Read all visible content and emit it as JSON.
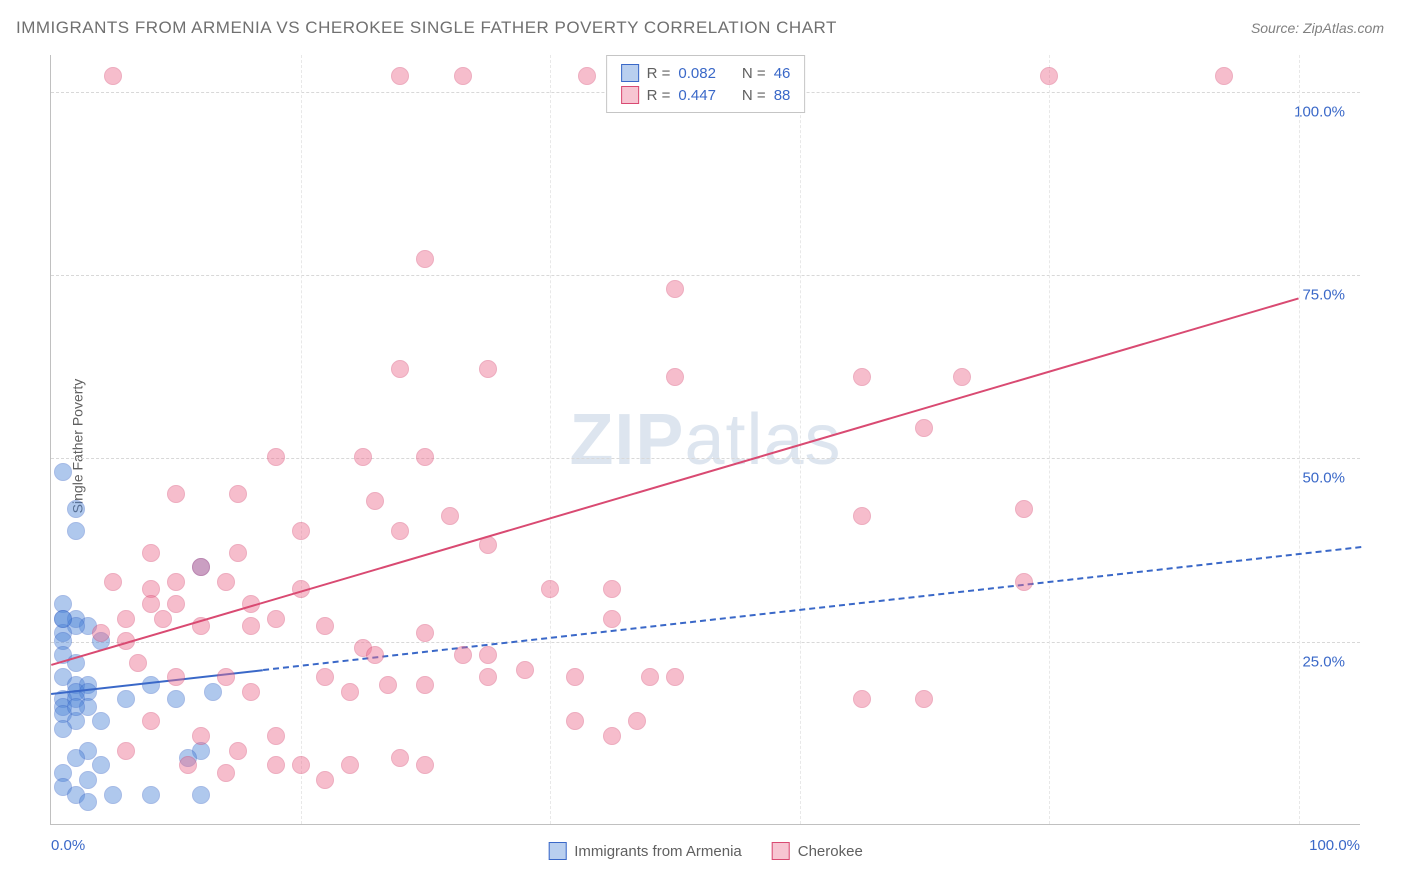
{
  "title": "IMMIGRANTS FROM ARMENIA VS CHEROKEE SINGLE FATHER POVERTY CORRELATION CHART",
  "source": "Source: ZipAtlas.com",
  "ylabel": "Single Father Poverty",
  "watermark": "ZIPatlas",
  "chart": {
    "type": "scatter",
    "xlim": [
      0,
      105
    ],
    "ylim": [
      0,
      105
    ],
    "xticks": [
      {
        "v": 0,
        "l": "0.0%"
      },
      {
        "v": 100,
        "l": "100.0%"
      }
    ],
    "yticks": [
      {
        "v": 25,
        "l": "25.0%"
      },
      {
        "v": 50,
        "l": "50.0%"
      },
      {
        "v": 75,
        "l": "75.0%"
      },
      {
        "v": 100,
        "l": "100.0%"
      }
    ],
    "xgrid_step": 20,
    "grid_color": "#d8d8d8",
    "background_color": "#ffffff",
    "tick_color": "#3a68c8",
    "marker_radius": 9,
    "marker_border": 1.5,
    "marker_fill_opacity": 0.35,
    "series": [
      {
        "name": "Immigrants from Armenia",
        "color": "#4f86d8",
        "border_color": "#3a68c8",
        "R": "0.082",
        "N": "46",
        "trend": {
          "x1": 0,
          "y1": 18,
          "x2": 105,
          "y2": 38,
          "solid_until_x": 17,
          "width": 2
        },
        "points": [
          [
            1,
            48
          ],
          [
            2,
            43
          ],
          [
            2,
            40
          ],
          [
            1,
            30
          ],
          [
            1,
            28
          ],
          [
            2,
            28
          ],
          [
            3,
            27
          ],
          [
            2,
            27
          ],
          [
            1,
            26
          ],
          [
            1,
            25
          ],
          [
            4,
            25
          ],
          [
            1,
            23
          ],
          [
            2,
            22
          ],
          [
            1,
            20
          ],
          [
            2,
            19
          ],
          [
            3,
            19
          ],
          [
            2,
            18
          ],
          [
            3,
            18
          ],
          [
            1,
            17
          ],
          [
            2,
            17
          ],
          [
            1,
            16
          ],
          [
            3,
            16
          ],
          [
            1,
            15
          ],
          [
            2,
            14
          ],
          [
            4,
            14
          ],
          [
            1,
            13
          ],
          [
            6,
            17
          ],
          [
            8,
            19
          ],
          [
            10,
            17
          ],
          [
            12,
            35
          ],
          [
            12,
            10
          ],
          [
            13,
            18
          ],
          [
            11,
            9
          ],
          [
            3,
            10
          ],
          [
            2,
            9
          ],
          [
            4,
            8
          ],
          [
            1,
            7
          ],
          [
            3,
            6
          ],
          [
            5,
            4
          ],
          [
            8,
            4
          ],
          [
            12,
            4
          ],
          [
            1,
            5
          ],
          [
            2,
            4
          ],
          [
            3,
            3
          ],
          [
            1,
            28
          ],
          [
            2,
            16
          ]
        ]
      },
      {
        "name": "Cherokee",
        "color": "#ec6e8f",
        "border_color": "#d94a72",
        "R": "0.447",
        "N": "88",
        "trend": {
          "x1": 0,
          "y1": 22,
          "x2": 100,
          "y2": 72,
          "solid_until_x": 100,
          "width": 2.5
        },
        "points": [
          [
            5,
            102
          ],
          [
            28,
            102
          ],
          [
            33,
            102
          ],
          [
            43,
            102
          ],
          [
            46,
            102
          ],
          [
            50,
            102
          ],
          [
            50,
            100
          ],
          [
            80,
            102
          ],
          [
            94,
            102
          ],
          [
            30,
            77
          ],
          [
            50,
            73
          ],
          [
            28,
            62
          ],
          [
            35,
            62
          ],
          [
            50,
            61
          ],
          [
            65,
            61
          ],
          [
            73,
            61
          ],
          [
            70,
            54
          ],
          [
            10,
            45
          ],
          [
            15,
            45
          ],
          [
            18,
            50
          ],
          [
            25,
            50
          ],
          [
            30,
            50
          ],
          [
            78,
            43
          ],
          [
            65,
            42
          ],
          [
            8,
            37
          ],
          [
            12,
            35
          ],
          [
            15,
            37
          ],
          [
            20,
            40
          ],
          [
            26,
            44
          ],
          [
            28,
            40
          ],
          [
            32,
            42
          ],
          [
            35,
            38
          ],
          [
            5,
            33
          ],
          [
            8,
            32
          ],
          [
            10,
            33
          ],
          [
            14,
            33
          ],
          [
            16,
            30
          ],
          [
            20,
            32
          ],
          [
            40,
            32
          ],
          [
            45,
            32
          ],
          [
            78,
            33
          ],
          [
            6,
            28
          ],
          [
            9,
            28
          ],
          [
            12,
            27
          ],
          [
            16,
            27
          ],
          [
            18,
            28
          ],
          [
            22,
            27
          ],
          [
            25,
            24
          ],
          [
            26,
            23
          ],
          [
            30,
            26
          ],
          [
            33,
            23
          ],
          [
            35,
            23
          ],
          [
            38,
            21
          ],
          [
            42,
            20
          ],
          [
            45,
            28
          ],
          [
            7,
            22
          ],
          [
            10,
            20
          ],
          [
            14,
            20
          ],
          [
            16,
            18
          ],
          [
            22,
            20
          ],
          [
            24,
            18
          ],
          [
            27,
            19
          ],
          [
            30,
            19
          ],
          [
            35,
            20
          ],
          [
            42,
            14
          ],
          [
            45,
            12
          ],
          [
            50,
            20
          ],
          [
            48,
            20
          ],
          [
            47,
            14
          ],
          [
            65,
            17
          ],
          [
            70,
            17
          ],
          [
            8,
            14
          ],
          [
            12,
            12
          ],
          [
            15,
            10
          ],
          [
            18,
            8
          ],
          [
            20,
            8
          ],
          [
            24,
            8
          ],
          [
            28,
            9
          ],
          [
            6,
            10
          ],
          [
            8,
            30
          ],
          [
            10,
            30
          ],
          [
            4,
            26
          ],
          [
            6,
            25
          ],
          [
            11,
            8
          ],
          [
            14,
            7
          ],
          [
            18,
            12
          ],
          [
            22,
            6
          ],
          [
            30,
            8
          ]
        ]
      }
    ]
  },
  "legend_top_labels": [
    "R =",
    "N ="
  ],
  "legend_bottom_swatches": true
}
